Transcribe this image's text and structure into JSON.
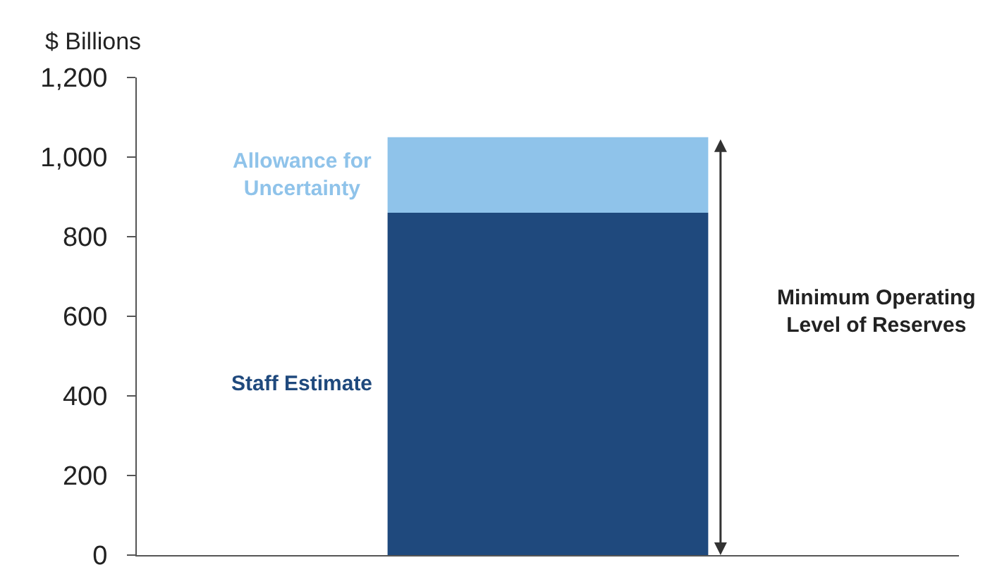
{
  "chart_data": {
    "type": "bar",
    "stacked": true,
    "ylabel": "$ Billions",
    "categories": [
      null
    ],
    "series": [
      {
        "name": "Staff Estimate",
        "color": "#1f497d",
        "values": [
          860
        ]
      },
      {
        "name": "Allowance for Uncertainty",
        "color": "#8fc3ea",
        "values": [
          190
        ]
      }
    ],
    "ylim": [
      0,
      1200
    ],
    "yticks": [
      0,
      {
        "value": 200,
        "label": "200"
      },
      {
        "value": 400,
        "label": "400"
      },
      {
        "value": 600,
        "label": "600"
      },
      {
        "value": 800,
        "label": "800"
      },
      {
        "value": 1000,
        "label": "1,000"
      },
      {
        "value": 1200,
        "label": "1,200"
      }
    ],
    "grid": false,
    "legend": false,
    "annotations": [
      "Minimum Operating Level of Reserves"
    ]
  }
}
